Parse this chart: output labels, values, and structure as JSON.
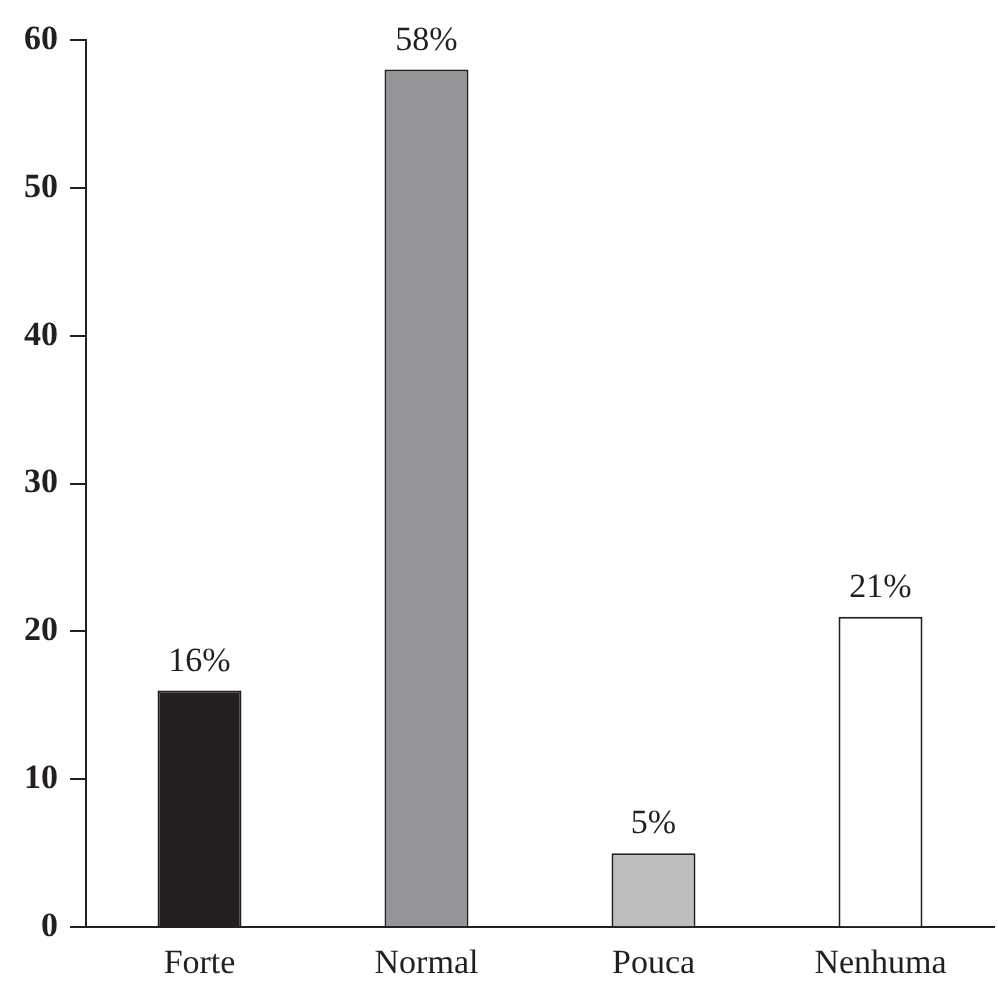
{
  "chart_data": {
    "type": "bar",
    "categories": [
      "Forte",
      "Normal",
      "Pouca",
      "Nenhuma"
    ],
    "values": [
      16,
      58,
      5,
      21
    ],
    "colors": [
      "#231f20",
      "#939598",
      "#bcbec0",
      "#ffffff"
    ],
    "value_labels": [
      "16%",
      "58%",
      "5%",
      "21%"
    ],
    "ylim": [
      0,
      60
    ],
    "yticks": [
      0,
      10,
      20,
      30,
      40,
      50,
      60
    ],
    "grid": false,
    "legend": false
  }
}
